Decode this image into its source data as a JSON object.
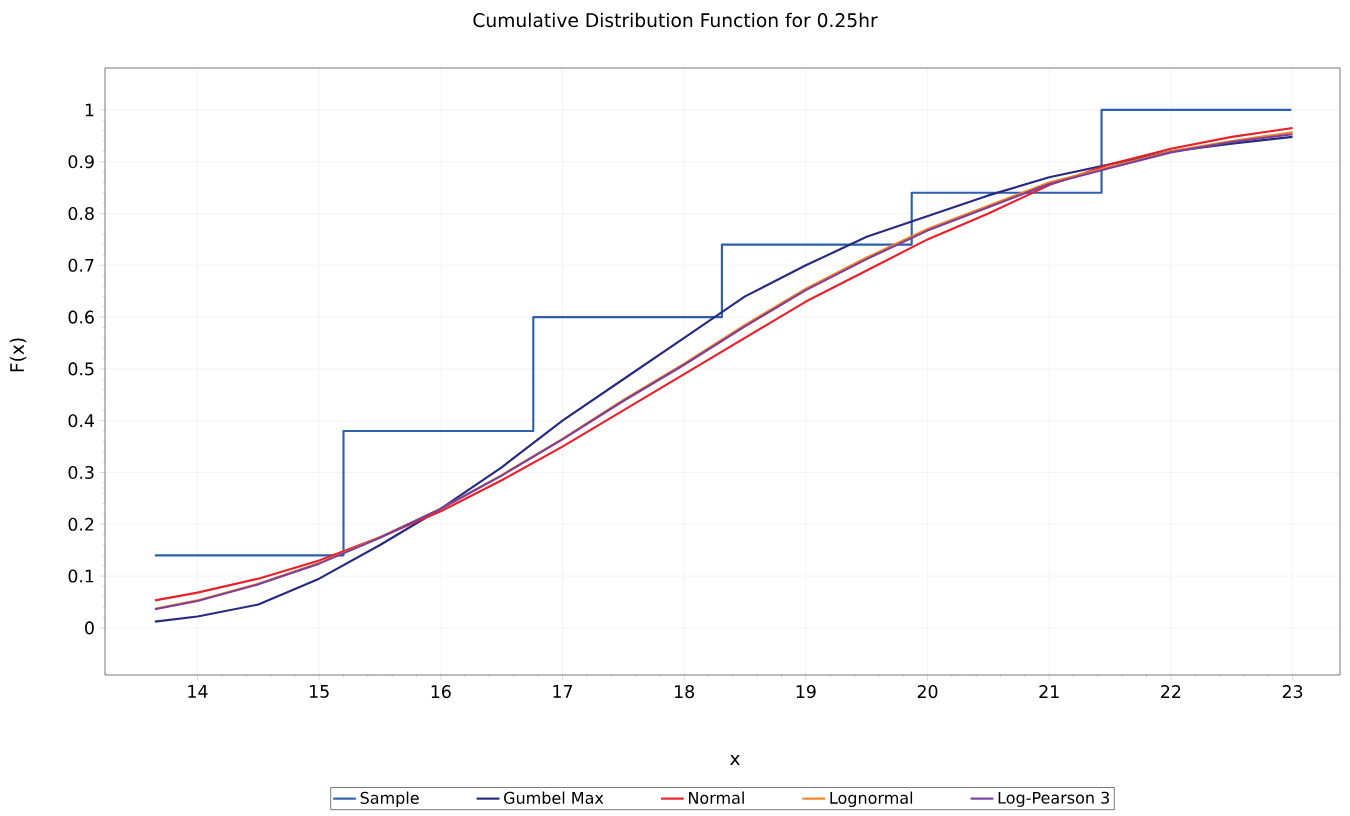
{
  "chart_data": {
    "type": "line",
    "title": "Cumulative Distribution Function for 0.25hr",
    "xlabel": "x",
    "ylabel": "F(x)",
    "xlim": [
      13.24,
      23.39
    ],
    "ylim": [
      -0.091,
      1.081
    ],
    "xticks": [
      14,
      15,
      16,
      17,
      18,
      19,
      20,
      21,
      22,
      23
    ],
    "yticks": [
      0,
      0.1,
      0.2,
      0.3,
      0.4,
      0.5,
      0.6,
      0.7,
      0.8,
      0.9,
      1
    ],
    "grid": true,
    "legend": "bottom",
    "marker": "none",
    "line_style": "solid",
    "series": [
      {
        "name": "Sample",
        "type": "step",
        "color": "#2e5fae",
        "x": [
          13.65,
          15.2,
          16.76,
          18.31,
          19.87,
          21.43,
          22.99
        ],
        "values": [
          0.14,
          0.38,
          0.6,
          0.74,
          0.84,
          1,
          1
        ]
      },
      {
        "name": "Gumbel Max",
        "color": "#262a80",
        "x": [
          13.65,
          14,
          14.5,
          15,
          15.5,
          16,
          16.5,
          17,
          17.5,
          18,
          18.5,
          19,
          19.5,
          20,
          20.5,
          21,
          21.5,
          22,
          22.5,
          23
        ],
        "values": [
          0.012,
          0.022,
          0.045,
          0.095,
          0.16,
          0.23,
          0.31,
          0.4,
          0.48,
          0.56,
          0.64,
          0.7,
          0.755,
          0.795,
          0.835,
          0.87,
          0.895,
          0.92,
          0.935,
          0.948
        ]
      },
      {
        "name": "Normal",
        "color": "#e8202a",
        "x": [
          13.65,
          14,
          14.5,
          15,
          15.5,
          16,
          16.5,
          17,
          17.5,
          18,
          18.5,
          19,
          19.5,
          20,
          20.5,
          21,
          21.5,
          22,
          22.5,
          23
        ],
        "values": [
          0.053,
          0.068,
          0.095,
          0.13,
          0.175,
          0.225,
          0.285,
          0.35,
          0.42,
          0.49,
          0.56,
          0.63,
          0.69,
          0.75,
          0.8,
          0.855,
          0.895,
          0.925,
          0.948,
          0.965
        ]
      },
      {
        "name": "Lognormal",
        "color": "#f58220",
        "x": [
          13.65,
          14,
          14.5,
          15,
          15.5,
          16,
          16.5,
          17,
          17.5,
          18,
          18.5,
          19,
          19.5,
          20,
          20.5,
          21,
          21.5,
          22,
          22.5,
          23
        ],
        "values": [
          0.037,
          0.053,
          0.085,
          0.125,
          0.175,
          0.23,
          0.295,
          0.365,
          0.44,
          0.51,
          0.585,
          0.655,
          0.715,
          0.77,
          0.815,
          0.86,
          0.89,
          0.92,
          0.94,
          0.957
        ]
      },
      {
        "name": "Log-Pearson 3",
        "color": "#7b3f9e",
        "x": [
          13.65,
          14,
          14.5,
          15,
          15.5,
          16,
          16.5,
          17,
          17.5,
          18,
          18.5,
          19,
          19.5,
          20,
          20.5,
          21,
          21.5,
          22,
          22.5,
          23
        ],
        "values": [
          0.036,
          0.052,
          0.084,
          0.124,
          0.174,
          0.23,
          0.294,
          0.364,
          0.438,
          0.508,
          0.582,
          0.652,
          0.712,
          0.767,
          0.812,
          0.857,
          0.888,
          0.918,
          0.938,
          0.953
        ]
      }
    ]
  }
}
